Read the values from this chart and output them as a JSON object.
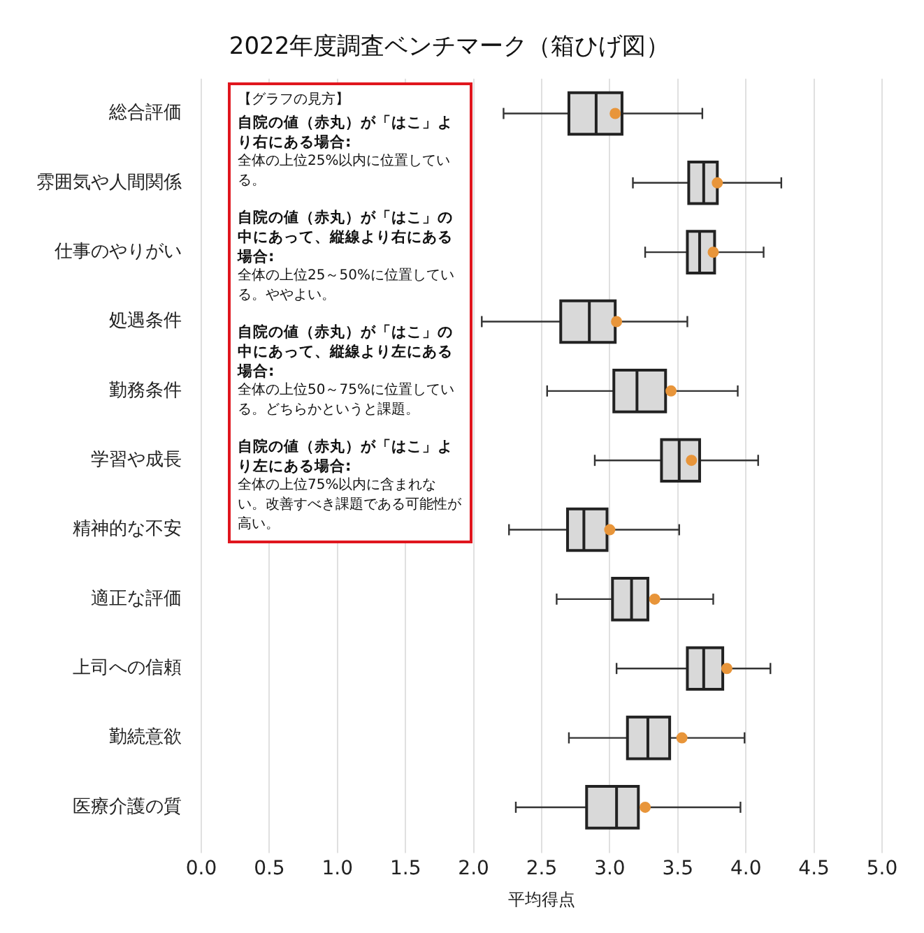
{
  "chart_data": {
    "type": "box",
    "title": "2022年度調査ベンチマーク（箱ひげ図）",
    "xlabel": "平均得点",
    "orientation": "horizontal",
    "categories": [
      "総合評価",
      "雰囲気や人間関係",
      "仕事のやりがい",
      "処遇条件",
      "勤務条件",
      "学習や成長",
      "精神的な不安",
      "適正な評価",
      "上司への信頼",
      "勤続意欲",
      "医療介護の質"
    ],
    "xlim": [
      0,
      5
    ],
    "xticks": [
      {
        "value": 0,
        "label": "0.0"
      },
      0.5,
      {
        "value": 1,
        "label": "1.0"
      },
      1.5,
      {
        "value": 2,
        "label": "2.0"
      },
      2.5,
      {
        "value": 3,
        "label": "3.0"
      },
      3.5,
      {
        "value": 4,
        "label": "4.0"
      },
      4.5,
      {
        "value": 5,
        "label": "5.0"
      }
    ],
    "grid": "x",
    "series": [
      {
        "type": "box",
        "color": "#d9d9d9",
        "boxes": [
          {
            "low": 2.22,
            "q1": 2.7,
            "median": 2.9,
            "q3": 3.09,
            "high": 3.68
          },
          {
            "low": 3.17,
            "q1": 3.58,
            "median": 3.69,
            "q3": 3.79,
            "high": 4.26
          },
          {
            "low": 3.26,
            "q1": 3.57,
            "median": 3.66,
            "q3": 3.77,
            "high": 4.13
          },
          {
            "low": 2.06,
            "q1": 2.64,
            "median": 2.85,
            "q3": 3.04,
            "high": 3.57
          },
          {
            "low": 2.54,
            "q1": 3.03,
            "median": 3.2,
            "q3": 3.41,
            "high": 3.94
          },
          {
            "low": 2.89,
            "q1": 3.38,
            "median": 3.51,
            "q3": 3.66,
            "high": 4.09
          },
          {
            "low": 2.26,
            "q1": 2.69,
            "median": 2.81,
            "q3": 2.98,
            "high": 3.51
          },
          {
            "low": 2.61,
            "q1": 3.02,
            "median": 3.16,
            "q3": 3.28,
            "high": 3.76
          },
          {
            "low": 3.05,
            "q1": 3.57,
            "median": 3.69,
            "q3": 3.83,
            "high": 4.18
          },
          {
            "low": 2.7,
            "q1": 3.13,
            "median": 3.28,
            "q3": 3.44,
            "high": 3.99
          },
          {
            "low": 2.31,
            "q1": 2.83,
            "median": 3.05,
            "q3": 3.21,
            "high": 3.96
          }
        ]
      },
      {
        "type": "scatter",
        "color": "#e8953a",
        "marker": "circle",
        "x": [
          "総合評価",
          "雰囲気や人間関係",
          "仕事のやりがい",
          "処遇条件",
          "勤務条件",
          "学習や成長",
          "精神的な不安",
          "適正な評価",
          "上司への信頼",
          "勤続意欲",
          "医療介護の質"
        ],
        "values": [
          3.04,
          3.79,
          3.76,
          3.05,
          3.45,
          3.6,
          3.0,
          3.33,
          3.86,
          3.53,
          3.26
        ]
      }
    ],
    "annotations": [
      "【グラフの見方】",
      "自院の値（赤丸）が「はこ」より右にある場合:",
      "全体の上位25%以内に位置している。",
      "自院の値（赤丸）が「はこ」の中にあって、縦線より右にある場合:",
      "全体の上位25～50%に位置している。ややよい。",
      "自院の値（赤丸）が「はこ」の中にあって、縦線より左にある場合:",
      "全体の上位50～75%に位置している。どちらかというと課題。",
      "自院の値（赤丸）が「はこ」より左にある場合:",
      "全体の上位75%以内に含まれない。改善すべき課題である可能性が高い。"
    ]
  }
}
